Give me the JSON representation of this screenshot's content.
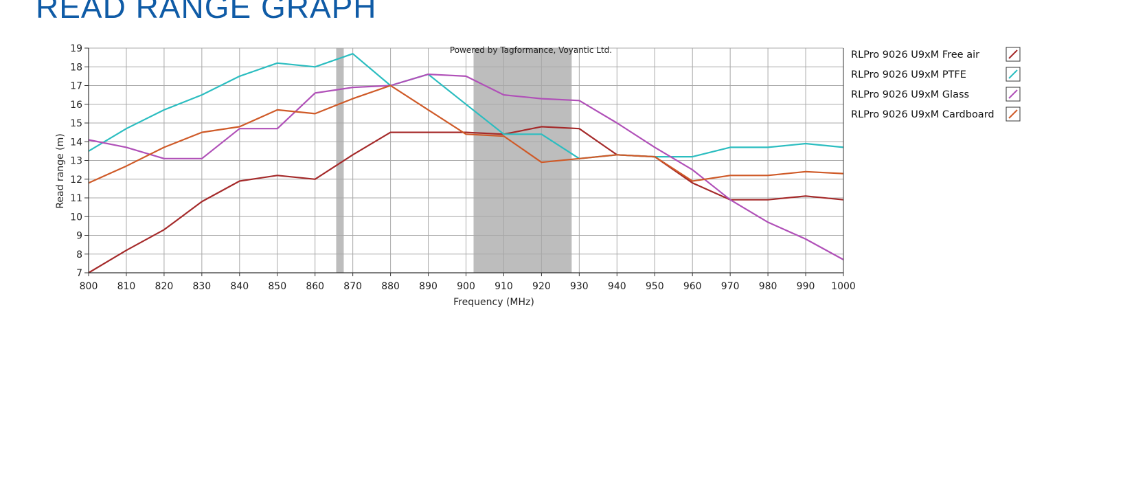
{
  "page": {
    "title": "READ RANGE GRAPH"
  },
  "chart_data": {
    "type": "line",
    "title": "",
    "credit": "Powered by Tagformance, Voyantic Ltd.",
    "xlabel": "Frequency (MHz)",
    "ylabel": "Read range (m)",
    "xlim": [
      800,
      1000
    ],
    "ylim": [
      7,
      19
    ],
    "x_ticks": [
      800,
      810,
      820,
      830,
      840,
      850,
      860,
      870,
      880,
      890,
      900,
      910,
      920,
      930,
      940,
      950,
      960,
      970,
      980,
      990,
      1000
    ],
    "y_ticks": [
      7,
      8,
      9,
      10,
      11,
      12,
      13,
      14,
      15,
      16,
      17,
      18,
      19
    ],
    "grid": true,
    "legend_position": "right",
    "highlight_bands": [
      {
        "from": 865.6,
        "to": 867.6
      },
      {
        "from": 902,
        "to": 928
      }
    ],
    "x": [
      800,
      810,
      820,
      830,
      840,
      850,
      860,
      870,
      880,
      890,
      900,
      910,
      920,
      930,
      940,
      950,
      960,
      970,
      980,
      990,
      1000
    ],
    "series": [
      {
        "name": "RLPro 9026 U9xM Free air",
        "color": "#a52a2a",
        "values": [
          7.0,
          8.2,
          9.3,
          10.8,
          11.9,
          12.2,
          12.0,
          13.3,
          14.5,
          14.5,
          14.5,
          14.4,
          14.8,
          14.7,
          13.3,
          13.2,
          11.8,
          10.9,
          10.9,
          11.1,
          10.9
        ]
      },
      {
        "name": "RLPro 9026 U9xM PTFE",
        "color": "#2bbdc0",
        "values": [
          13.5,
          14.7,
          15.7,
          16.5,
          17.5,
          18.2,
          18.0,
          18.7,
          17.0,
          17.6,
          16.0,
          14.4,
          14.4,
          13.1,
          13.3,
          13.2,
          13.2,
          13.7,
          13.7,
          13.9,
          13.7
        ]
      },
      {
        "name": "RLPro 9026 U9xM Glass",
        "color": "#b050b8",
        "values": [
          14.1,
          13.7,
          13.1,
          13.1,
          14.7,
          14.7,
          16.6,
          16.9,
          17.0,
          17.6,
          17.5,
          16.5,
          16.3,
          16.2,
          15.0,
          13.7,
          12.5,
          10.9,
          9.7,
          8.8,
          7.7
        ]
      },
      {
        "name": "RLPro 9026 U9xM Cardboard",
        "color": "#cf5a28",
        "values": [
          11.8,
          12.7,
          13.7,
          14.5,
          14.8,
          15.7,
          15.5,
          16.3,
          17.0,
          15.7,
          14.4,
          14.3,
          12.9,
          13.1,
          13.3,
          13.2,
          11.9,
          12.2,
          12.2,
          12.4,
          12.3
        ]
      }
    ]
  }
}
